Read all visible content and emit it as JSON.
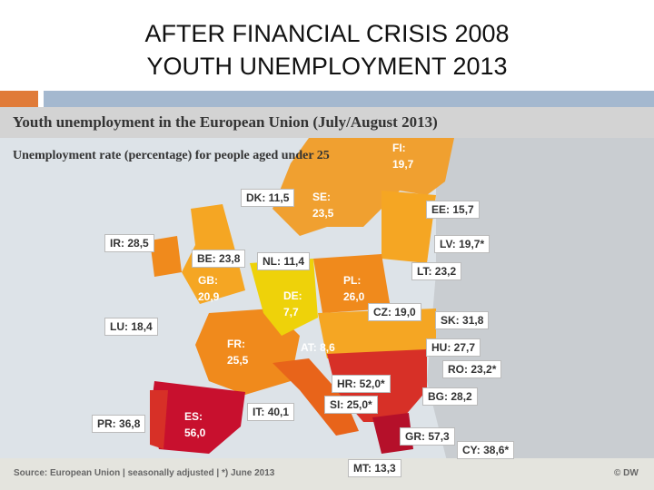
{
  "slide": {
    "title_lines": [
      "AFTER FINANCIAL CRISIS 2008",
      "YOUTH UNEMPLOYMENT 2013"
    ]
  },
  "map": {
    "title": "Youth unemployment in the European Union (July/August 2013)",
    "subtitle": "Unemployment rate (percentage) for people aged under 25",
    "labels": [
      {
        "code": "FI:",
        "value": "19,7"
      },
      {
        "code": "SE:",
        "value": "23,5"
      },
      {
        "code": "DK:",
        "value": "11,5"
      },
      {
        "code": "EE:",
        "value": "15,7"
      },
      {
        "code": "IR:",
        "value": "28,5"
      },
      {
        "code": "LV:",
        "value": "19,7*"
      },
      {
        "code": "BE:",
        "value": "23,8"
      },
      {
        "code": "NL:",
        "value": "11,4"
      },
      {
        "code": "LT:",
        "value": "23,2"
      },
      {
        "code": "GB:",
        "value": "20,9"
      },
      {
        "code": "PL:",
        "value": "26,0"
      },
      {
        "code": "DE:",
        "value": "7,7"
      },
      {
        "code": "CZ:",
        "value": "19,0"
      },
      {
        "code": "LU:",
        "value": "18,4"
      },
      {
        "code": "SK:",
        "value": "31,8"
      },
      {
        "code": "FR:",
        "value": "25,5"
      },
      {
        "code": "AT:",
        "value": "8,6"
      },
      {
        "code": "HU:",
        "value": "27,7"
      },
      {
        "code": "RO:",
        "value": "23,2*"
      },
      {
        "code": "HR:",
        "value": "52,0*"
      },
      {
        "code": "BG:",
        "value": "28,2"
      },
      {
        "code": "SI:",
        "value": "25,0*"
      },
      {
        "code": "IT:",
        "value": "40,1"
      },
      {
        "code": "PR:",
        "value": "36,8"
      },
      {
        "code": "ES:",
        "value": "56,0"
      },
      {
        "code": "GR:",
        "value": "57,3"
      },
      {
        "code": "CY:",
        "value": "38,6*"
      },
      {
        "code": "MT:",
        "value": "13,3"
      }
    ],
    "source": "Source: European Union | seasonally adjusted | *) June 2013",
    "credit": "© DW"
  }
}
